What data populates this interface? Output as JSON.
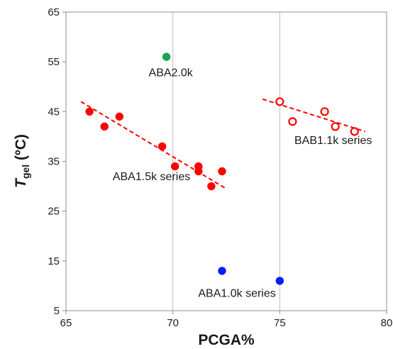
{
  "chart_data": {
    "type": "scatter",
    "title": "",
    "xlabel": "PCGA%",
    "ylabel_main": "T",
    "ylabel_sub": "gel",
    "ylabel_unit": " (ºC)",
    "xlim": [
      65,
      80
    ],
    "ylim": [
      5,
      65
    ],
    "xticks": [
      65,
      70,
      75,
      80
    ],
    "yticks": [
      5,
      15,
      25,
      35,
      45,
      55,
      65
    ],
    "grid": "vertical",
    "series": [
      {
        "name": "ABA1.5k series",
        "color": "#ff0000",
        "marker": "filled-circle",
        "points": [
          [
            66.1,
            45
          ],
          [
            66.8,
            42
          ],
          [
            67.5,
            44
          ],
          [
            69.5,
            38
          ],
          [
            70.1,
            34
          ],
          [
            71.2,
            34
          ],
          [
            71.2,
            33
          ],
          [
            71.8,
            30
          ],
          [
            72.3,
            33
          ]
        ],
        "trendline": [
          [
            65.7,
            47
          ],
          [
            72.5,
            29.5
          ]
        ]
      },
      {
        "name": "BAB1.1k series",
        "color": "#ff0000",
        "marker": "open-circle",
        "points": [
          [
            75.0,
            47
          ],
          [
            75.6,
            43
          ],
          [
            77.1,
            45
          ],
          [
            77.6,
            42
          ],
          [
            78.5,
            41
          ]
        ],
        "trendline": [
          [
            74.2,
            47.5
          ],
          [
            79.0,
            41
          ]
        ]
      },
      {
        "name": "ABA2.0k",
        "color": "#1aa34a",
        "marker": "filled-circle",
        "points": [
          [
            69.7,
            56
          ]
        ]
      },
      {
        "name": "ABA1.0k series",
        "color": "#0a1aff",
        "marker": "filled-circle",
        "points": [
          [
            72.3,
            13
          ],
          [
            75.0,
            11
          ]
        ]
      }
    ],
    "annotations": [
      {
        "text": "ABA2.0k",
        "x": 69.9,
        "y": 52.1
      },
      {
        "text": "ABA1.5k series",
        "x": 69.0,
        "y": 31.2
      },
      {
        "text": "BAB1.1k series",
        "x": 77.5,
        "y": 38.5
      },
      {
        "text": "ABA1.0k series",
        "x": 73.0,
        "y": 7.8
      }
    ]
  }
}
